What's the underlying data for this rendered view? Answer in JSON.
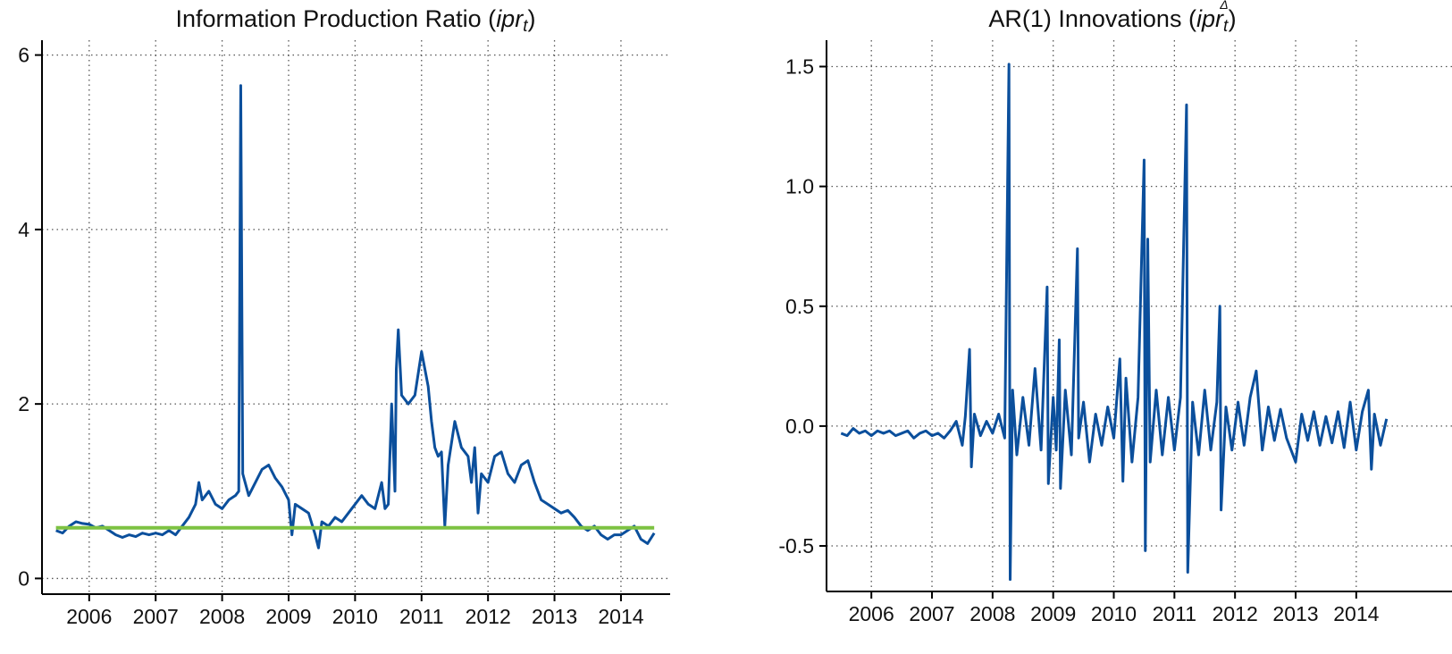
{
  "chart_data": [
    {
      "type": "line",
      "title": [
        {
          "text": "Information Production Ratio ("
        },
        {
          "text": "ipr",
          "style": "italic"
        },
        {
          "text": "t",
          "style": "sub"
        },
        {
          "text": ")"
        }
      ],
      "xlim": [
        2005.29,
        2014.74
      ],
      "ylim": [
        -0.18,
        6.17
      ],
      "xticks": [
        2006,
        2007,
        2008,
        2009,
        2010,
        2011,
        2012,
        2013,
        2014
      ],
      "yticks": [
        0,
        2,
        4,
        6
      ],
      "grid": true,
      "series": [
        {
          "color": "#0b4f9c",
          "x": [
            2005.5,
            2005.6,
            2005.7,
            2005.8,
            2005.9,
            2006.0,
            2006.1,
            2006.2,
            2006.3,
            2006.4,
            2006.5,
            2006.6,
            2006.7,
            2006.8,
            2006.9,
            2007.0,
            2007.1,
            2007.2,
            2007.3,
            2007.4,
            2007.5,
            2007.6,
            2007.65,
            2007.7,
            2007.8,
            2007.9,
            2008.0,
            2008.1,
            2008.2,
            2008.25,
            2008.28,
            2008.31,
            2008.4,
            2008.5,
            2008.6,
            2008.7,
            2008.8,
            2008.9,
            2009.0,
            2009.05,
            2009.1,
            2009.2,
            2009.3,
            2009.4,
            2009.45,
            2009.5,
            2009.6,
            2009.7,
            2009.8,
            2009.9,
            2010.0,
            2010.1,
            2010.2,
            2010.3,
            2010.4,
            2010.45,
            2010.5,
            2010.55,
            2010.6,
            2010.62,
            2010.65,
            2010.7,
            2010.8,
            2010.9,
            2011.0,
            2011.05,
            2011.1,
            2011.15,
            2011.2,
            2011.25,
            2011.3,
            2011.35,
            2011.4,
            2011.5,
            2011.6,
            2011.7,
            2011.75,
            2011.8,
            2011.85,
            2011.9,
            2012.0,
            2012.1,
            2012.2,
            2012.3,
            2012.4,
            2012.5,
            2012.6,
            2012.7,
            2012.8,
            2012.9,
            2013.0,
            2013.1,
            2013.2,
            2013.3,
            2013.4,
            2013.5,
            2013.6,
            2013.7,
            2013.8,
            2013.9,
            2014.0,
            2014.1,
            2014.2,
            2014.3,
            2014.4,
            2014.5
          ],
          "values": [
            0.55,
            0.52,
            0.6,
            0.65,
            0.63,
            0.62,
            0.58,
            0.6,
            0.55,
            0.5,
            0.47,
            0.5,
            0.48,
            0.52,
            0.5,
            0.52,
            0.5,
            0.55,
            0.5,
            0.6,
            0.7,
            0.85,
            1.1,
            0.9,
            1.0,
            0.85,
            0.8,
            0.9,
            0.95,
            1.0,
            5.65,
            1.2,
            0.95,
            1.1,
            1.25,
            1.3,
            1.15,
            1.05,
            0.9,
            0.5,
            0.85,
            0.8,
            0.75,
            0.5,
            0.35,
            0.65,
            0.6,
            0.7,
            0.65,
            0.75,
            0.85,
            0.95,
            0.85,
            0.8,
            1.1,
            0.8,
            0.85,
            2.0,
            1.0,
            2.4,
            2.85,
            2.1,
            2.0,
            2.1,
            2.6,
            2.4,
            2.2,
            1.8,
            1.5,
            1.4,
            1.45,
            0.6,
            1.3,
            1.8,
            1.5,
            1.4,
            1.1,
            1.5,
            0.75,
            1.2,
            1.1,
            1.4,
            1.45,
            1.2,
            1.1,
            1.3,
            1.35,
            1.1,
            0.9,
            0.85,
            0.8,
            0.75,
            0.78,
            0.7,
            0.6,
            0.55,
            0.6,
            0.5,
            0.45,
            0.5,
            0.5,
            0.55,
            0.6,
            0.45,
            0.4,
            0.52
          ]
        },
        {
          "color": "#7dc242",
          "x": [
            2005.5,
            2014.5
          ],
          "values": [
            0.58,
            0.58
          ]
        }
      ]
    },
    {
      "type": "line",
      "title": [
        {
          "text": "AR(1) Innovations ("
        },
        {
          "text": "ipr",
          "style": "italic"
        },
        {
          "text": "t",
          "style": "sub"
        },
        {
          "text": "Δ",
          "style": "sup"
        },
        {
          "text": ")"
        }
      ],
      "xlim": [
        2005.26,
        2015.58
      ],
      "ylim": [
        -0.69,
        1.61
      ],
      "xticks": [
        2006,
        2007,
        2008,
        2009,
        2010,
        2011,
        2012,
        2013,
        2014
      ],
      "yticks": [
        -0.5,
        {
          "value": 0,
          "label": "0.0"
        },
        0.5,
        {
          "value": 1,
          "label": "1.0"
        },
        1.5
      ],
      "grid": true,
      "series": [
        {
          "color": "#0b4f9c",
          "x": [
            2005.5,
            2005.6,
            2005.7,
            2005.8,
            2005.9,
            2006.0,
            2006.1,
            2006.2,
            2006.3,
            2006.4,
            2006.5,
            2006.6,
            2006.7,
            2006.8,
            2006.9,
            2007.0,
            2007.1,
            2007.2,
            2007.3,
            2007.4,
            2007.5,
            2007.55,
            2007.62,
            2007.65,
            2007.7,
            2007.8,
            2007.9,
            2008.0,
            2008.1,
            2008.2,
            2008.27,
            2008.29,
            2008.33,
            2008.4,
            2008.5,
            2008.6,
            2008.7,
            2008.8,
            2008.9,
            2008.92,
            2009.0,
            2009.05,
            2009.1,
            2009.12,
            2009.2,
            2009.3,
            2009.4,
            2009.42,
            2009.5,
            2009.6,
            2009.7,
            2009.8,
            2009.9,
            2010.0,
            2010.1,
            2010.15,
            2010.2,
            2010.3,
            2010.4,
            2010.5,
            2010.52,
            2010.56,
            2010.6,
            2010.7,
            2010.8,
            2010.9,
            2011.0,
            2011.1,
            2011.2,
            2011.22,
            2011.3,
            2011.4,
            2011.5,
            2011.6,
            2011.7,
            2011.75,
            2011.77,
            2011.85,
            2011.95,
            2012.05,
            2012.15,
            2012.25,
            2012.35,
            2012.45,
            2012.55,
            2012.65,
            2012.75,
            2012.85,
            2013.0,
            2013.1,
            2013.2,
            2013.3,
            2013.4,
            2013.5,
            2013.6,
            2013.7,
            2013.8,
            2013.9,
            2014.0,
            2014.1,
            2014.2,
            2014.25,
            2014.3,
            2014.4,
            2014.5
          ],
          "values": [
            -0.03,
            -0.04,
            -0.01,
            -0.03,
            -0.02,
            -0.04,
            -0.02,
            -0.03,
            -0.02,
            -0.04,
            -0.03,
            -0.02,
            -0.05,
            -0.03,
            -0.02,
            -0.04,
            -0.03,
            -0.05,
            -0.02,
            0.02,
            -0.08,
            0.04,
            0.32,
            -0.17,
            0.05,
            -0.04,
            0.02,
            -0.03,
            0.05,
            -0.05,
            1.51,
            -0.64,
            0.15,
            -0.12,
            0.12,
            -0.08,
            0.24,
            -0.1,
            0.58,
            -0.24,
            0.12,
            -0.1,
            0.36,
            -0.26,
            0.15,
            -0.12,
            0.74,
            -0.05,
            0.1,
            -0.15,
            0.05,
            -0.08,
            0.08,
            -0.05,
            0.28,
            -0.23,
            0.2,
            -0.15,
            0.12,
            1.11,
            -0.52,
            0.78,
            -0.15,
            0.15,
            -0.12,
            0.12,
            -0.1,
            0.12,
            1.34,
            -0.61,
            0.1,
            -0.12,
            0.15,
            -0.1,
            0.1,
            0.5,
            -0.35,
            0.08,
            -0.1,
            0.1,
            -0.08,
            0.12,
            0.23,
            -0.1,
            0.08,
            -0.06,
            0.07,
            -0.05,
            -0.15,
            0.05,
            -0.06,
            0.06,
            -0.08,
            0.04,
            -0.07,
            0.06,
            -0.09,
            0.1,
            -0.1,
            0.06,
            0.15,
            -0.18,
            0.05,
            -0.08,
            0.03
          ]
        }
      ]
    }
  ]
}
